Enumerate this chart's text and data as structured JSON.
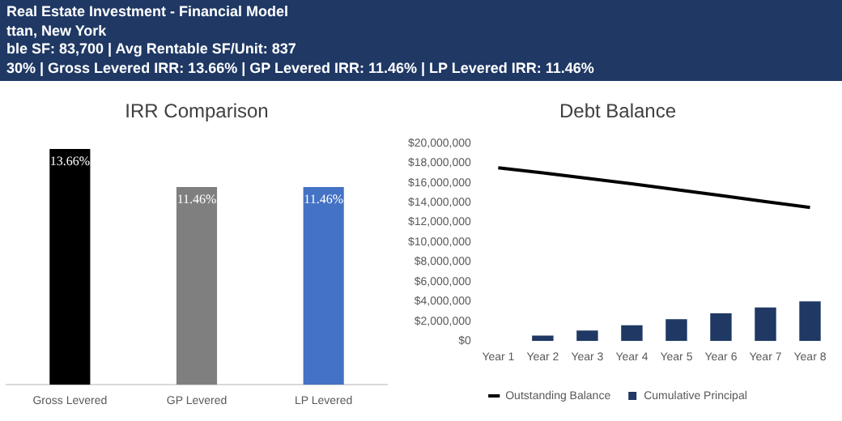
{
  "chart_data": [
    {
      "type": "bar",
      "title": "IRR Comparison",
      "categories": [
        "Gross Levered",
        "GP Levered",
        "LP Levered"
      ],
      "values": [
        13.66,
        11.46,
        11.46
      ],
      "colors": [
        "#000000",
        "#7f7f7f",
        "#4472c4"
      ],
      "value_labels": [
        "13.66%",
        "11.46%",
        "11.46%"
      ],
      "tick_labels": "x",
      "grid": false,
      "legend": false,
      "annotations": [
        "Real Estate Investment - Financial Model",
        "ttan, New York",
        "ble SF: 83,700 | Avg Rentable SF/Unit: 837",
        "30% | Gross Levered IRR: 13.66% | GP Levered IRR: 11.46% | LP Levered IRR: 11.46%"
      ]
    },
    {
      "type": "bar",
      "title": "Debt Balance",
      "categories": [
        "Year 1",
        "Year 2",
        "Year 3",
        "Year 4",
        "Year 5",
        "Year 6",
        "Year 7",
        "Year 8"
      ],
      "series": [
        {
          "name": "Cumulative Principal",
          "color": "#1f3864",
          "values": [
            0,
            550000,
            1050000,
            1600000,
            2200000,
            2800000,
            3400000,
            4000000
          ]
        },
        {
          "name": "Outstanding Balance",
          "type": "line",
          "color": "#000000",
          "values": [
            17500000,
            17000000,
            16450000,
            15900000,
            15300000,
            14700000,
            14100000,
            13500000
          ]
        }
      ],
      "ylim": [
        0,
        20000000
      ],
      "yticks": [
        {
          "value": 0,
          "label": "$0"
        },
        {
          "value": 2000000,
          "label": "$2,000,000"
        },
        {
          "value": 4000000,
          "label": "$4,000,000"
        },
        {
          "value": 6000000,
          "label": "$6,000,000"
        },
        {
          "value": 8000000,
          "label": "$8,000,000"
        },
        {
          "value": 10000000,
          "label": "$10,000,000"
        },
        {
          "value": 12000000,
          "label": "$12,000,000"
        },
        {
          "value": 14000000,
          "label": "$14,000,000"
        },
        {
          "value": 16000000,
          "label": "$16,000,000"
        },
        {
          "value": 18000000,
          "label": "$18,000,000"
        },
        {
          "value": 20000000,
          "label": "$20,000,000"
        }
      ],
      "grid": false,
      "legend": "bottom"
    }
  ]
}
